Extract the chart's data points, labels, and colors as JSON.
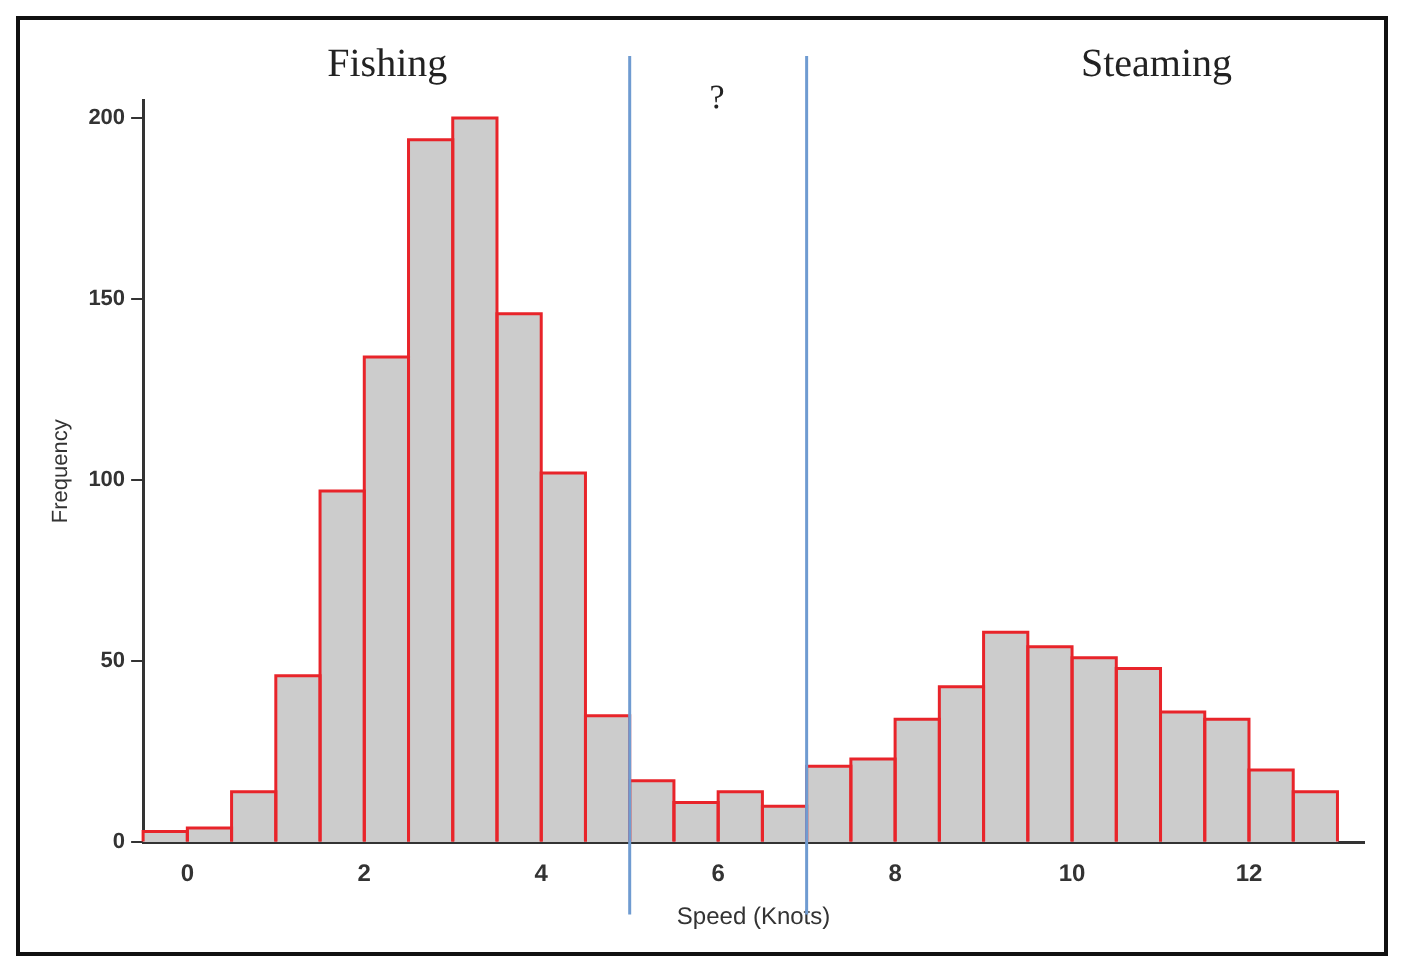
{
  "chart_data": {
    "type": "histogram",
    "xlabel": "Speed (Knots)",
    "ylabel": "Frequency",
    "bins": [
      -0.5,
      0,
      0.5,
      1,
      1.5,
      2,
      2.5,
      3,
      3.5,
      4,
      4.5,
      5,
      5.5,
      6,
      6.5,
      7,
      7.5,
      8,
      8.5,
      9,
      9.5,
      10,
      10.5,
      11,
      11.5,
      12,
      12.5,
      13
    ],
    "values": [
      3,
      4,
      14,
      46,
      97,
      134,
      194,
      200,
      146,
      102,
      35,
      17,
      11,
      14,
      10,
      21,
      23,
      34,
      43,
      58,
      54,
      51,
      48,
      36,
      34,
      20,
      14
    ],
    "color": "#cccccc",
    "xlim": [
      -0.5,
      13.3
    ],
    "xticks": [
      0,
      2,
      4,
      6,
      8,
      10,
      12
    ],
    "ylim": [
      0,
      205
    ],
    "yticks": [
      0,
      50,
      100,
      150,
      200
    ],
    "grid": false,
    "legend": false,
    "ref_lines": [
      {
        "axis": "x",
        "value": 5,
        "color": "#6f9bd1"
      },
      {
        "axis": "x",
        "value": 7,
        "color": "#6f9bd1"
      }
    ],
    "annotations": [
      "Fishing",
      "?",
      "Steaming"
    ]
  }
}
